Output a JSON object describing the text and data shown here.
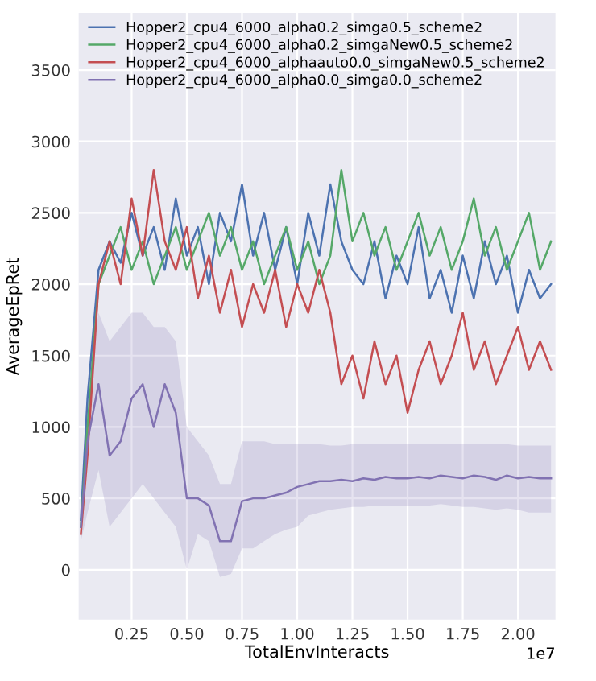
{
  "chart_data": {
    "type": "line",
    "xlabel": "TotalEnvInteracts",
    "ylabel": "AverageEpRet",
    "x": [
      0.02,
      0.05,
      0.1,
      0.15,
      0.2,
      0.25,
      0.3,
      0.35,
      0.4,
      0.45,
      0.5,
      0.55,
      0.6,
      0.65,
      0.7,
      0.75,
      0.8,
      0.85,
      0.9,
      0.95,
      1.0,
      1.05,
      1.1,
      1.15,
      1.2,
      1.25,
      1.3,
      1.35,
      1.4,
      1.45,
      1.5,
      1.55,
      1.6,
      1.65,
      1.7,
      1.75,
      1.8,
      1.85,
      1.9,
      1.95,
      2.0,
      2.05,
      2.1,
      2.15
    ],
    "series": [
      {
        "name": "Hopper2_cpu4_6000_alpha0.2_simga0.5_scheme2",
        "color": "#4c72b0",
        "values": [
          350,
          1200,
          2100,
          2300,
          2150,
          2500,
          2200,
          2400,
          2100,
          2600,
          2200,
          2400,
          2000,
          2500,
          2300,
          2700,
          2200,
          2500,
          2100,
          2400,
          2000,
          2500,
          2200,
          2700,
          2300,
          2100,
          2000,
          2300,
          1900,
          2200,
          2000,
          2400,
          1900,
          2100,
          1800,
          2200,
          1900,
          2300,
          2000,
          2200,
          1800,
          2100,
          1900,
          2000
        ]
      },
      {
        "name": "Hopper2_cpu4_6000_alpha0.2_simgaNew0.5_scheme2",
        "color": "#55a868",
        "values": [
          300,
          1000,
          2000,
          2200,
          2400,
          2100,
          2300,
          2000,
          2200,
          2400,
          2100,
          2300,
          2500,
          2200,
          2400,
          2100,
          2300,
          2000,
          2200,
          2400,
          2100,
          2300,
          2000,
          2200,
          2800,
          2300,
          2500,
          2200,
          2400,
          2100,
          2300,
          2500,
          2200,
          2400,
          2100,
          2300,
          2600,
          2200,
          2400,
          2100,
          2300,
          2500,
          2100,
          2300
        ]
      },
      {
        "name": "Hopper2_cpu4_6000_alphaauto0.0_simgaNew0.5_scheme2",
        "color": "#c44e52",
        "values": [
          250,
          800,
          2000,
          2300,
          2000,
          2600,
          2200,
          2800,
          2300,
          2100,
          2400,
          1900,
          2200,
          1800,
          2100,
          1700,
          2000,
          1800,
          2100,
          1700,
          2000,
          1800,
          2100,
          1800,
          1300,
          1500,
          1200,
          1600,
          1300,
          1500,
          1100,
          1400,
          1600,
          1300,
          1500,
          1800,
          1400,
          1600,
          1300,
          1500,
          1700,
          1400,
          1600,
          1400
        ]
      },
      {
        "name": "Hopper2_cpu4_6000_alpha0.0_simga0.0_scheme2",
        "color": "#8172b2",
        "values": [
          300,
          900,
          1300,
          800,
          900,
          1200,
          1300,
          1000,
          1300,
          1100,
          500,
          500,
          450,
          200,
          200,
          480,
          500,
          500,
          520,
          540,
          580,
          600,
          620,
          620,
          630,
          620,
          640,
          630,
          650,
          640,
          640,
          650,
          640,
          660,
          650,
          640,
          660,
          650,
          630,
          660,
          640,
          650,
          640,
          640
        ],
        "lower": [
          200,
          400,
          700,
          300,
          400,
          500,
          600,
          500,
          400,
          300,
          0,
          250,
          200,
          -50,
          -30,
          150,
          150,
          200,
          250,
          280,
          300,
          380,
          400,
          420,
          430,
          440,
          440,
          450,
          450,
          450,
          450,
          450,
          450,
          460,
          450,
          440,
          440,
          430,
          420,
          430,
          420,
          400,
          400,
          400
        ],
        "upper": [
          400,
          1300,
          1800,
          1600,
          1700,
          1800,
          1800,
          1700,
          1700,
          1600,
          1000,
          900,
          800,
          600,
          600,
          900,
          900,
          900,
          880,
          880,
          880,
          880,
          880,
          870,
          870,
          880,
          880,
          880,
          880,
          880,
          880,
          880,
          880,
          880,
          880,
          880,
          880,
          880,
          880,
          880,
          870,
          870,
          870,
          870
        ]
      }
    ],
    "xlim": [
      0.01,
      2.17
    ],
    "xticks": [
      {
        "value": 0.25,
        "label": "0.25"
      },
      {
        "value": 0.5,
        "label": "0.50"
      },
      {
        "value": 0.75,
        "label": "0.75"
      },
      {
        "value": 1.0,
        "label": "1.00"
      },
      {
        "value": 1.25,
        "label": "1.25"
      },
      {
        "value": 1.5,
        "label": "1.50"
      },
      {
        "value": 1.75,
        "label": "1.75"
      },
      {
        "value": 2.0,
        "label": "2.00"
      }
    ],
    "ylim": [
      -350,
      3900
    ],
    "yticks": [
      0,
      500,
      1000,
      1500,
      2000,
      2500,
      3000,
      3500
    ],
    "annotations": [
      "1e7"
    ],
    "grid": true,
    "legend": "top",
    "line_style": "solid",
    "marker": "none"
  }
}
